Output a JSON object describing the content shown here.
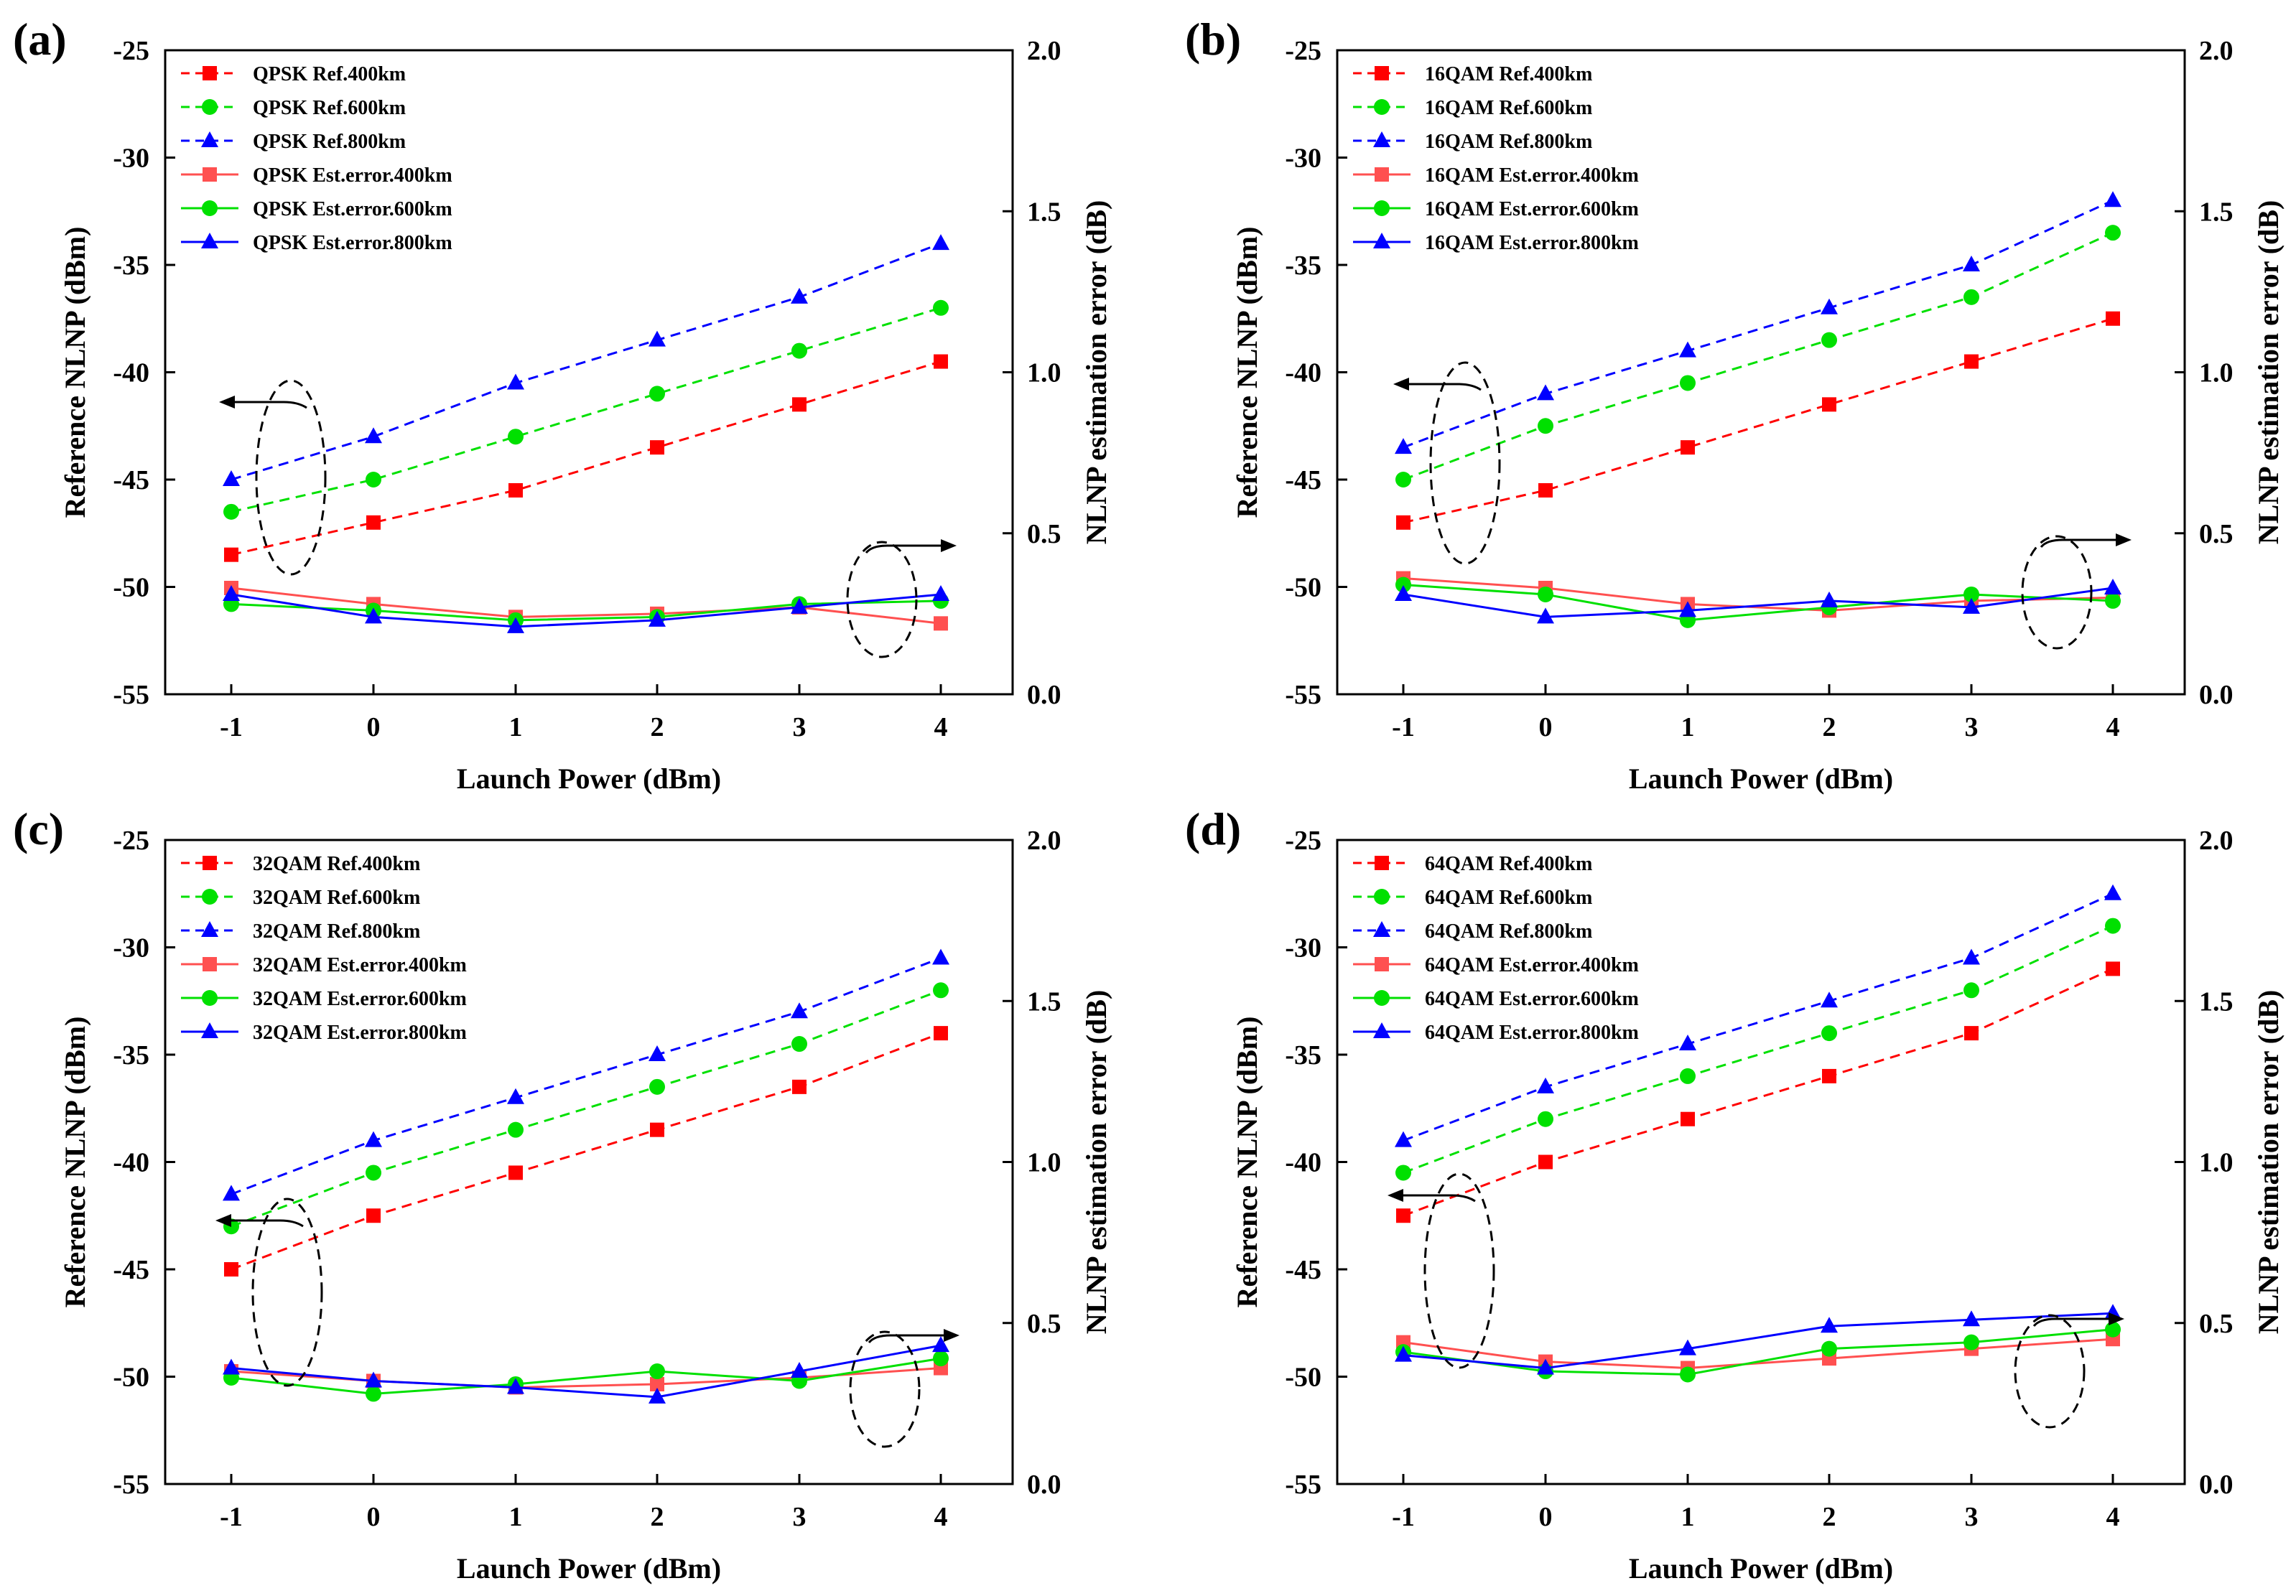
{
  "figure": {
    "x_categories": [
      -1,
      0,
      1,
      2,
      3,
      4
    ],
    "xlabel": "Launch Power (dBm)",
    "ylabel_left": "Reference NLNP (dBm)",
    "ylabel_right": "NLNP estimation error (dB)",
    "left_ticks": [
      "-25",
      "-30",
      "-35",
      "-40",
      "-45",
      "-50",
      "-55"
    ],
    "right_ticks": [
      "2.0",
      "1.5",
      "1.0",
      "0.5",
      "0.0"
    ],
    "x_ticks": [
      "-1",
      "0",
      "1",
      "2",
      "3",
      "4"
    ],
    "colors": {
      "red": "#ff0000",
      "green": "#00e000",
      "blue": "#0000ff",
      "est_red": "#ff5050"
    }
  },
  "chart_data": [
    {
      "panel": "(a)",
      "type": "line",
      "title": "",
      "xlabel": "Launch Power (dBm)",
      "ylabel": "Reference NLNP (dBm)",
      "ylabel_right": "NLNP estimation error (dB)",
      "x": [
        -1,
        0,
        1,
        2,
        3,
        4
      ],
      "ylim_left": [
        -55,
        -25
      ],
      "ylim_right": [
        0.0,
        2.0
      ],
      "legend_position": "top-left",
      "series": [
        {
          "name": "QPSK Ref.400km",
          "axis": "left",
          "style": "dashed",
          "marker": "square",
          "color": "red",
          "values": [
            -48.5,
            -47,
            -45.5,
            -43.5,
            -41.5,
            -39.5
          ]
        },
        {
          "name": "QPSK Ref.600km",
          "axis": "left",
          "style": "dashed",
          "marker": "circle",
          "color": "green",
          "values": [
            -46.5,
            -45,
            -43,
            -41,
            -39,
            -37
          ]
        },
        {
          "name": "QPSK Ref.800km",
          "axis": "left",
          "style": "dashed",
          "marker": "triangle",
          "color": "blue",
          "values": [
            -45,
            -43,
            -40.5,
            -38.5,
            -36.5,
            -34
          ]
        },
        {
          "name": "QPSK Est.error.400km",
          "axis": "right",
          "style": "solid",
          "marker": "square",
          "color": "est_red",
          "values": [
            0.33,
            0.28,
            0.24,
            0.25,
            0.27,
            0.22
          ]
        },
        {
          "name": "QPSK Est.error.600km",
          "axis": "right",
          "style": "solid",
          "marker": "circle",
          "color": "green",
          "values": [
            0.28,
            0.26,
            0.23,
            0.24,
            0.28,
            0.29
          ]
        },
        {
          "name": "QPSK Est.error.800km",
          "axis": "right",
          "style": "solid",
          "marker": "triangle",
          "color": "blue",
          "values": [
            0.31,
            0.24,
            0.21,
            0.23,
            0.27,
            0.31
          ]
        }
      ]
    },
    {
      "panel": "(b)",
      "type": "line",
      "title": "",
      "xlabel": "Launch Power (dBm)",
      "ylabel": "Reference NLNP (dBm)",
      "ylabel_right": "NLNP estimation error (dB)",
      "x": [
        -1,
        0,
        1,
        2,
        3,
        4
      ],
      "ylim_left": [
        -55,
        -25
      ],
      "ylim_right": [
        0.0,
        2.0
      ],
      "legend_position": "top-left",
      "series": [
        {
          "name": "16QAM Ref.400km",
          "axis": "left",
          "style": "dashed",
          "marker": "square",
          "color": "red",
          "values": [
            -47,
            -45.5,
            -43.5,
            -41.5,
            -39.5,
            -37.5
          ]
        },
        {
          "name": "16QAM Ref.600km",
          "axis": "left",
          "style": "dashed",
          "marker": "circle",
          "color": "green",
          "values": [
            -45,
            -42.5,
            -40.5,
            -38.5,
            -36.5,
            -33.5
          ]
        },
        {
          "name": "16QAM Ref.800km",
          "axis": "left",
          "style": "dashed",
          "marker": "triangle",
          "color": "blue",
          "values": [
            -43.5,
            -41,
            -39,
            -37,
            -35,
            -32
          ]
        },
        {
          "name": "16QAM Est.error.400km",
          "axis": "right",
          "style": "solid",
          "marker": "square",
          "color": "est_red",
          "values": [
            0.36,
            0.33,
            0.28,
            0.26,
            0.29,
            0.3
          ]
        },
        {
          "name": "16QAM Est.error.600km",
          "axis": "right",
          "style": "solid",
          "marker": "circle",
          "color": "green",
          "values": [
            0.34,
            0.31,
            0.23,
            0.27,
            0.31,
            0.29
          ]
        },
        {
          "name": "16QAM Est.error.800km",
          "axis": "right",
          "style": "solid",
          "marker": "triangle",
          "color": "blue",
          "values": [
            0.31,
            0.24,
            0.26,
            0.29,
            0.27,
            0.33
          ]
        }
      ]
    },
    {
      "panel": "(c)",
      "type": "line",
      "title": "",
      "xlabel": "Launch Power (dBm)",
      "ylabel": "Reference NLNP (dBm)",
      "ylabel_right": "NLNP estimation error (dB)",
      "x": [
        -1,
        0,
        1,
        2,
        3,
        4
      ],
      "ylim_left": [
        -55,
        -25
      ],
      "ylim_right": [
        0.0,
        2.0
      ],
      "legend_position": "top-left",
      "series": [
        {
          "name": "32QAM Ref.400km",
          "axis": "left",
          "style": "dashed",
          "marker": "square",
          "color": "red",
          "values": [
            -45,
            -42.5,
            -40.5,
            -38.5,
            -36.5,
            -34
          ]
        },
        {
          "name": "32QAM Ref.600km",
          "axis": "left",
          "style": "dashed",
          "marker": "circle",
          "color": "green",
          "values": [
            -43,
            -40.5,
            -38.5,
            -36.5,
            -34.5,
            -32
          ]
        },
        {
          "name": "32QAM Ref.800km",
          "axis": "left",
          "style": "dashed",
          "marker": "triangle",
          "color": "blue",
          "values": [
            -41.5,
            -39,
            -37,
            -35,
            -33,
            -30.5
          ]
        },
        {
          "name": "32QAM Est.error.400km",
          "axis": "right",
          "style": "solid",
          "marker": "square",
          "color": "est_red",
          "values": [
            0.35,
            0.32,
            0.3,
            0.31,
            0.33,
            0.36
          ]
        },
        {
          "name": "32QAM Est.error.600km",
          "axis": "right",
          "style": "solid",
          "marker": "circle",
          "color": "green",
          "values": [
            0.33,
            0.28,
            0.31,
            0.35,
            0.32,
            0.39
          ]
        },
        {
          "name": "32QAM Est.error.800km",
          "axis": "right",
          "style": "solid",
          "marker": "triangle",
          "color": "blue",
          "values": [
            0.36,
            0.32,
            0.3,
            0.27,
            0.35,
            0.43
          ]
        }
      ]
    },
    {
      "panel": "(d)",
      "type": "line",
      "title": "",
      "xlabel": "Launch Power (dBm)",
      "ylabel": "Reference NLNP (dBm)",
      "ylabel_right": "NLNP estimation error (dB)",
      "x": [
        -1,
        0,
        1,
        2,
        3,
        4
      ],
      "ylim_left": [
        -55,
        -25
      ],
      "ylim_right": [
        0.0,
        2.0
      ],
      "legend_position": "top-left",
      "series": [
        {
          "name": "64QAM Ref.400km",
          "axis": "left",
          "style": "dashed",
          "marker": "square",
          "color": "red",
          "values": [
            -42.5,
            -40,
            -38,
            -36,
            -34,
            -31
          ]
        },
        {
          "name": "64QAM Ref.600km",
          "axis": "left",
          "style": "dashed",
          "marker": "circle",
          "color": "green",
          "values": [
            -40.5,
            -38,
            -36,
            -34,
            -32,
            -29
          ]
        },
        {
          "name": "64QAM Ref.800km",
          "axis": "left",
          "style": "dashed",
          "marker": "triangle",
          "color": "blue",
          "values": [
            -39,
            -36.5,
            -34.5,
            -32.5,
            -30.5,
            -27.5
          ]
        },
        {
          "name": "64QAM Est.error.400km",
          "axis": "right",
          "style": "solid",
          "marker": "square",
          "color": "est_red",
          "values": [
            0.44,
            0.38,
            0.36,
            0.39,
            0.42,
            0.45
          ]
        },
        {
          "name": "64QAM Est.error.600km",
          "axis": "right",
          "style": "solid",
          "marker": "circle",
          "color": "green",
          "values": [
            0.41,
            0.35,
            0.34,
            0.42,
            0.44,
            0.48
          ]
        },
        {
          "name": "64QAM Est.error.800km",
          "axis": "right",
          "style": "solid",
          "marker": "triangle",
          "color": "blue",
          "values": [
            0.4,
            0.36,
            0.42,
            0.49,
            0.51,
            0.53
          ]
        }
      ]
    }
  ]
}
